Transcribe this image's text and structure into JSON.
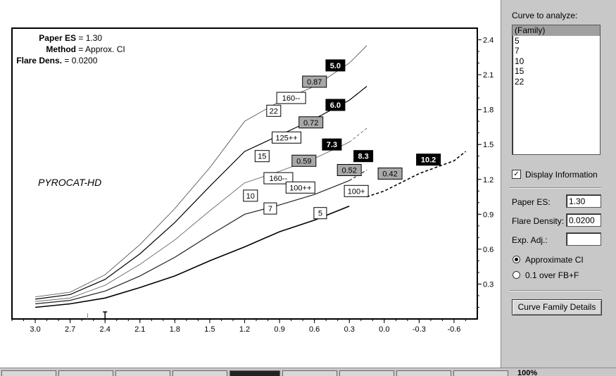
{
  "info": [
    {
      "key": "Paper ES",
      "value": "1.30"
    },
    {
      "key": "Method",
      "value": "Approx. CI"
    },
    {
      "key": "Flare Dens.",
      "value": "0.0200"
    }
  ],
  "brand": "PYROCAT-HD",
  "chart_data": {
    "type": "line",
    "x_ticks": [
      "3.0",
      "2.7",
      "2.4",
      "2.1",
      "1.8",
      "1.5",
      "1.2",
      "0.9",
      "0.6",
      "0.3",
      "0.0",
      "-0.3",
      "-0.6"
    ],
    "y_ticks": [
      "0.3",
      "0.6",
      "0.9",
      "1.2",
      "1.5",
      "1.8",
      "2.1",
      "2.4"
    ],
    "xlim": [
      3.2,
      -0.8
    ],
    "ylim": [
      0,
      2.5
    ],
    "series": [
      {
        "name": "22",
        "points": [
          [
            3.0,
            0.19
          ],
          [
            2.7,
            0.23
          ],
          [
            2.4,
            0.38
          ],
          [
            2.1,
            0.64
          ],
          [
            1.8,
            0.95
          ],
          [
            1.5,
            1.3
          ],
          [
            1.2,
            1.7
          ],
          [
            0.9,
            1.87
          ],
          [
            0.6,
            2.0
          ],
          [
            0.3,
            2.2
          ],
          [
            0.15,
            2.35
          ]
        ]
      },
      {
        "name": "15",
        "points": [
          [
            3.0,
            0.17
          ],
          [
            2.7,
            0.21
          ],
          [
            2.4,
            0.34
          ],
          [
            2.1,
            0.56
          ],
          [
            1.8,
            0.83
          ],
          [
            1.5,
            1.14
          ],
          [
            1.2,
            1.44
          ],
          [
            0.9,
            1.58
          ],
          [
            0.6,
            1.72
          ],
          [
            0.3,
            1.88
          ],
          [
            0.15,
            2.0
          ]
        ]
      },
      {
        "name": "10",
        "points": [
          [
            3.0,
            0.15
          ],
          [
            2.7,
            0.18
          ],
          [
            2.4,
            0.29
          ],
          [
            2.1,
            0.47
          ],
          [
            1.8,
            0.68
          ],
          [
            1.5,
            0.93
          ],
          [
            1.2,
            1.17
          ],
          [
            0.9,
            1.27
          ],
          [
            0.6,
            1.38
          ],
          [
            0.3,
            1.52
          ],
          [
            0.15,
            1.64
          ]
        ]
      },
      {
        "name": "7",
        "points": [
          [
            3.0,
            0.13
          ],
          [
            2.7,
            0.16
          ],
          [
            2.4,
            0.24
          ],
          [
            2.1,
            0.37
          ],
          [
            1.8,
            0.53
          ],
          [
            1.5,
            0.72
          ],
          [
            1.2,
            0.9
          ],
          [
            0.9,
            0.98
          ],
          [
            0.6,
            1.07
          ],
          [
            0.3,
            1.19
          ],
          [
            0.15,
            1.28
          ]
        ]
      },
      {
        "name": "5",
        "points": [
          [
            3.0,
            0.1
          ],
          [
            2.7,
            0.13
          ],
          [
            2.4,
            0.18
          ],
          [
            2.1,
            0.27
          ],
          [
            1.8,
            0.37
          ],
          [
            1.5,
            0.5
          ],
          [
            1.2,
            0.62
          ],
          [
            0.9,
            0.75
          ],
          [
            0.6,
            0.85
          ],
          [
            0.3,
            0.97
          ],
          [
            0.15,
            1.05
          ],
          [
            0.0,
            1.1
          ],
          [
            -0.3,
            1.25
          ],
          [
            -0.6,
            1.36
          ],
          [
            -0.7,
            1.44
          ]
        ]
      }
    ],
    "dashed_from_x": [
      null,
      null,
      0.3,
      0.3,
      0.2
    ],
    "curve_labels": [
      {
        "text": "22",
        "x": 0.95,
        "y": 1.79,
        "style": "white"
      },
      {
        "text": "15",
        "x": 1.05,
        "y": 1.4,
        "style": "white"
      },
      {
        "text": "10",
        "x": 1.15,
        "y": 1.06,
        "style": "white"
      },
      {
        "text": "7",
        "x": 0.98,
        "y": 0.95,
        "style": "white"
      },
      {
        "text": "5",
        "x": 0.55,
        "y": 0.91,
        "style": "white"
      },
      {
        "text": "160--",
        "x": 0.8,
        "y": 1.9,
        "style": "white"
      },
      {
        "text": "125++",
        "x": 0.84,
        "y": 1.56,
        "style": "white"
      },
      {
        "text": "160--",
        "x": 0.91,
        "y": 1.21,
        "style": "white"
      },
      {
        "text": "100++",
        "x": 0.72,
        "y": 1.13,
        "style": "white"
      },
      {
        "text": "100+",
        "x": 0.24,
        "y": 1.1,
        "style": "white"
      },
      {
        "text": "0.87",
        "x": 0.6,
        "y": 2.04,
        "style": "gray"
      },
      {
        "text": "0.72",
        "x": 0.63,
        "y": 1.69,
        "style": "gray"
      },
      {
        "text": "0.59",
        "x": 0.69,
        "y": 1.36,
        "style": "gray"
      },
      {
        "text": "0.52",
        "x": 0.3,
        "y": 1.28,
        "style": "gray"
      },
      {
        "text": "0.42",
        "x": -0.05,
        "y": 1.25,
        "style": "gray"
      },
      {
        "text": "5.0",
        "x": 0.42,
        "y": 2.18,
        "style": "black"
      },
      {
        "text": "6.0",
        "x": 0.42,
        "y": 1.84,
        "style": "black"
      },
      {
        "text": "7.3",
        "x": 0.45,
        "y": 1.5,
        "style": "black"
      },
      {
        "text": "8.3",
        "x": 0.18,
        "y": 1.4,
        "style": "black"
      },
      {
        "text": "10.2",
        "x": -0.38,
        "y": 1.37,
        "style": "black"
      }
    ]
  },
  "sidebar": {
    "curve_title": "Curve to analyze:",
    "curves": [
      "(Family)",
      "5",
      "7",
      "10",
      "15",
      "22"
    ],
    "selected_index": 0,
    "display_info_label": "Display Information",
    "display_info_checked": true,
    "paper_es_label": "Paper ES:",
    "paper_es_value": "1.30",
    "flare_density_label": "Flare Density:",
    "flare_density_value": "0.0200",
    "exp_adj_label": "Exp. Adj.:",
    "exp_adj_value": "",
    "method_options": [
      "Approximate CI",
      "0.1 over FB+F"
    ],
    "method_selected": 0,
    "details_button": "Curve Family Details"
  },
  "taskbar": {
    "zoom": "100%"
  }
}
